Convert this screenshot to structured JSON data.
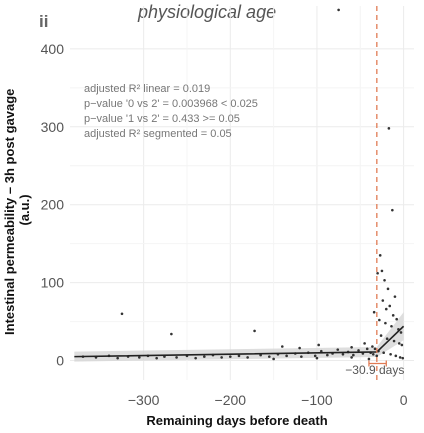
{
  "panel_label": "ii",
  "chart_data": {
    "type": "scatter",
    "title": "physiological age",
    "xlabel": "Remaining days before death",
    "ylabel_lines": [
      "Intestinal permeability – 3h post gavage",
      "(a.u.)"
    ],
    "xlim": [
      -385,
      12
    ],
    "ylim": [
      -25,
      455
    ],
    "x_ticks": [
      -300,
      -200,
      -100,
      0
    ],
    "x_tick_labels": [
      "−300",
      "−200",
      "−100",
      "0"
    ],
    "y_ticks": [
      0,
      100,
      200,
      300,
      400
    ],
    "y_tick_labels": [
      "0",
      "100",
      "200",
      "300",
      "400"
    ],
    "grid": true,
    "stats": [
      "adjusted R² linear = 0.019",
      "p−value '0 vs 2' = 0.003968 < 0.025",
      "p−value '1 vs 2' = 0.433 >= 0.05",
      "adjusted R² segmented = 0.05"
    ],
    "breakpoint": {
      "x": -30.9,
      "label": "−30.9 days",
      "ci": [
        -40,
        -20
      ]
    },
    "fit_line": [
      [
        -380,
        5
      ],
      [
        -30.9,
        11
      ],
      [
        0,
        44
      ]
    ],
    "points": [
      [
        -75,
        450
      ],
      [
        -17,
        298
      ],
      [
        -13,
        193
      ],
      [
        -27,
        135
      ],
      [
        -25,
        115
      ],
      [
        -30,
        112
      ],
      [
        -22,
        103
      ],
      [
        -18,
        92
      ],
      [
        -10,
        82
      ],
      [
        -24,
        77
      ],
      [
        -16,
        70
      ],
      [
        -20,
        66
      ],
      [
        -34,
        62
      ],
      [
        -12,
        58
      ],
      [
        -8,
        53
      ],
      [
        -325,
        60
      ],
      [
        -268,
        34
      ],
      [
        -172,
        38
      ],
      [
        -28,
        52
      ],
      [
        -21,
        48
      ],
      [
        -14,
        44
      ],
      [
        -6,
        40
      ],
      [
        -3,
        36
      ],
      [
        -26,
        32
      ],
      [
        -19,
        28
      ],
      [
        -11,
        25
      ],
      [
        -5,
        22
      ],
      [
        -2,
        20
      ],
      [
        -36,
        18
      ],
      [
        -33,
        15
      ],
      [
        -29,
        12
      ],
      [
        -23,
        10
      ],
      [
        -15,
        8
      ],
      [
        -9,
        6
      ],
      [
        -4,
        4
      ],
      [
        -1,
        3
      ],
      [
        -370,
        5
      ],
      [
        -355,
        4
      ],
      [
        -340,
        6
      ],
      [
        -330,
        3
      ],
      [
        -318,
        5
      ],
      [
        -305,
        4
      ],
      [
        -295,
        6
      ],
      [
        -285,
        3
      ],
      [
        -276,
        5
      ],
      [
        -262,
        4
      ],
      [
        -250,
        6
      ],
      [
        -240,
        3
      ],
      [
        -230,
        5
      ],
      [
        -220,
        7
      ],
      [
        -210,
        4
      ],
      [
        -200,
        5
      ],
      [
        -190,
        6
      ],
      [
        -180,
        4
      ],
      [
        -165,
        7
      ],
      [
        -155,
        5
      ],
      [
        -145,
        8
      ],
      [
        -135,
        6
      ],
      [
        -125,
        9
      ],
      [
        -118,
        5
      ],
      [
        -110,
        10
      ],
      [
        -102,
        6
      ],
      [
        -95,
        12
      ],
      [
        -88,
        7
      ],
      [
        -82,
        9
      ],
      [
        -76,
        14
      ],
      [
        -70,
        8
      ],
      [
        -64,
        11
      ],
      [
        -58,
        7
      ],
      [
        -52,
        13
      ],
      [
        -47,
        9
      ],
      [
        -42,
        15
      ],
      [
        -38,
        10
      ],
      [
        -35,
        8
      ],
      [
        -31,
        6
      ],
      [
        -140,
        18
      ],
      [
        -120,
        16
      ],
      [
        -98,
        20
      ],
      [
        -60,
        17
      ],
      [
        -45,
        22
      ],
      [
        -150,
        2
      ],
      [
        -100,
        3
      ],
      [
        -60,
        4
      ],
      [
        -40,
        2
      ]
    ],
    "colors": {
      "points": "#333333",
      "fit_line": "#222222",
      "ci_band": "#d6d6d6",
      "breakpoint": "#e07b54",
      "grid": "#ebebeb"
    }
  }
}
